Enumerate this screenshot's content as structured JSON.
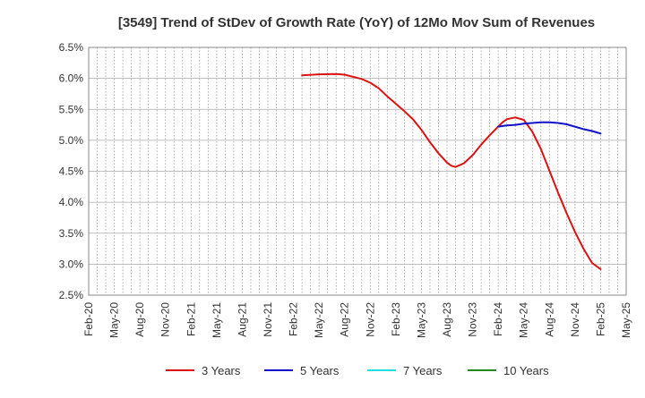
{
  "chart_data": {
    "type": "line",
    "title": "[3549]  Trend of StDev of Growth Rate (YoY) of 12Mo Mov Sum of Revenues",
    "xlabel": "",
    "ylabel": "",
    "ylim": [
      2.5,
      6.5
    ],
    "yticks": [
      "6.5%",
      "6.0%",
      "5.5%",
      "5.0%",
      "4.5%",
      "4.0%",
      "3.5%",
      "3.0%",
      "2.5%"
    ],
    "ytick_values": [
      6.5,
      6.0,
      5.5,
      5.0,
      4.5,
      4.0,
      3.5,
      3.0,
      2.5
    ],
    "xticks": [
      "Feb-20",
      "May-20",
      "Aug-20",
      "Nov-20",
      "Feb-21",
      "May-21",
      "Aug-21",
      "Nov-21",
      "Feb-22",
      "May-22",
      "Aug-22",
      "Nov-22",
      "Feb-23",
      "May-23",
      "Aug-23",
      "Nov-23",
      "Feb-24",
      "May-24",
      "Aug-24",
      "Nov-24",
      "Feb-25",
      "May-25"
    ],
    "x_range_months": [
      0,
      63
    ],
    "grid": true,
    "legend_position": "bottom",
    "series": [
      {
        "name": "3 Years",
        "color": "#dd1111",
        "x": [
          25,
          27,
          29,
          30,
          32,
          33,
          34,
          35,
          36,
          37,
          38,
          39,
          40,
          41,
          42,
          42.5,
          43,
          44,
          45,
          46,
          47,
          48,
          48.5,
          49,
          50,
          51,
          52,
          53,
          54,
          55,
          56,
          57,
          58,
          59,
          60
        ],
        "values": [
          6.05,
          6.065,
          6.07,
          6.06,
          5.99,
          5.93,
          5.84,
          5.71,
          5.59,
          5.47,
          5.34,
          5.17,
          4.97,
          4.79,
          4.64,
          4.59,
          4.57,
          4.63,
          4.76,
          4.93,
          5.08,
          5.22,
          5.29,
          5.34,
          5.37,
          5.33,
          5.14,
          4.86,
          4.51,
          4.16,
          3.83,
          3.52,
          3.25,
          3.02,
          2.92
        ]
      },
      {
        "name": "5 Years",
        "color": "#1111cc",
        "x": [
          48,
          49,
          50,
          51,
          52,
          53,
          54,
          55,
          56,
          57,
          58,
          59,
          60
        ],
        "values": [
          5.22,
          5.24,
          5.25,
          5.27,
          5.28,
          5.29,
          5.29,
          5.28,
          5.26,
          5.22,
          5.18,
          5.15,
          5.11
        ]
      },
      {
        "name": "7 Years",
        "color": "#22dddd",
        "x": [],
        "values": []
      },
      {
        "name": "10 Years",
        "color": "#228822",
        "x": [],
        "values": []
      }
    ]
  }
}
